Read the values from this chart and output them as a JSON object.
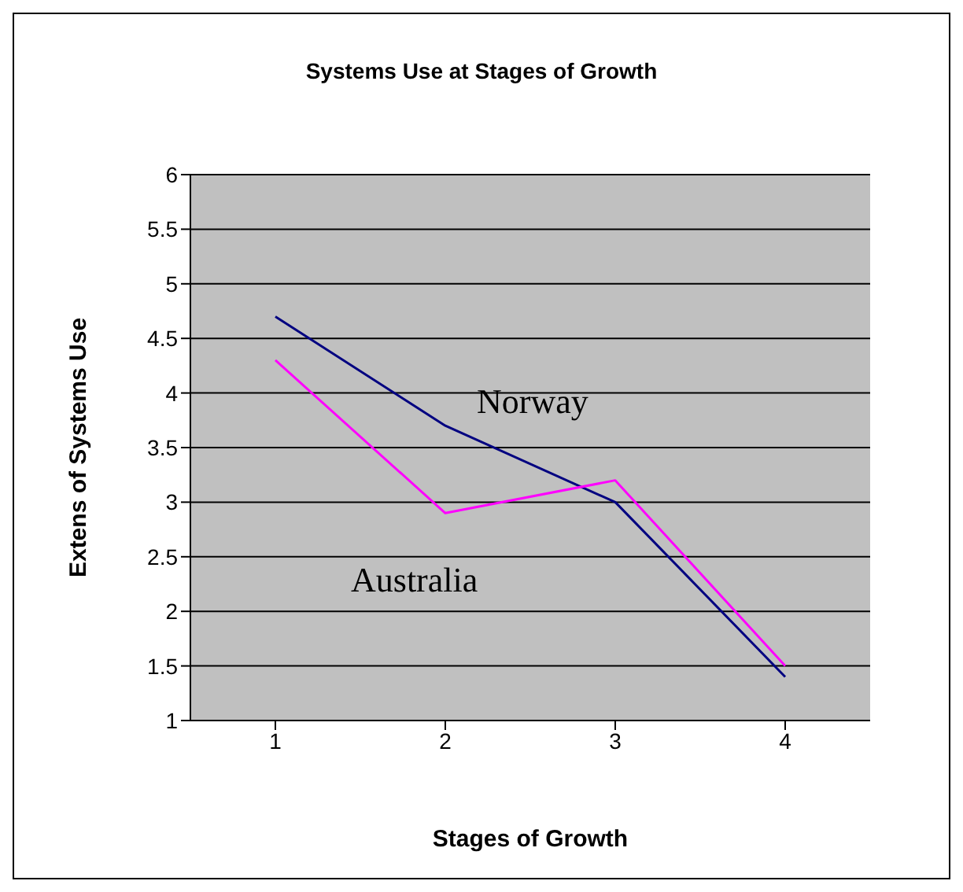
{
  "chart_data": {
    "type": "line",
    "title": "Systems Use at Stages of Growth",
    "xlabel": "Stages of Growth",
    "ylabel": "Extens of Systems Use",
    "categories": [
      "1",
      "2",
      "3",
      "4"
    ],
    "series": [
      {
        "name": "Norway",
        "color": "#000080",
        "values": [
          4.7,
          3.7,
          3.0,
          1.4
        ]
      },
      {
        "name": "Australia",
        "color": "#ff00ff",
        "values": [
          4.3,
          2.9,
          3.2,
          1.5
        ]
      }
    ],
    "ylim": [
      1,
      6
    ],
    "yticks": [
      1,
      1.5,
      2,
      2.5,
      3,
      3.5,
      4,
      4.5,
      5,
      5.5,
      6
    ],
    "grid": "y",
    "legend": false,
    "marker": "none",
    "line_style": "solid"
  }
}
